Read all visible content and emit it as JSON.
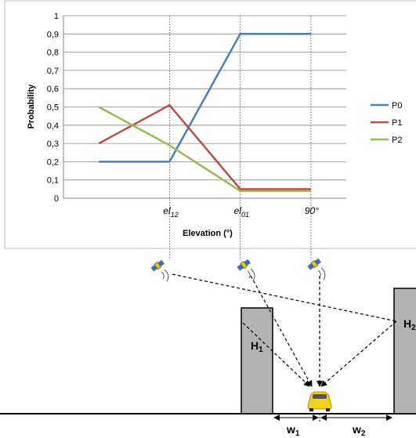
{
  "chart_data": {
    "type": "line",
    "categories": [
      "",
      "el12",
      "el01",
      "90°"
    ],
    "category_labels": [
      {
        "base": "",
        "sub": ""
      },
      {
        "base": "el",
        "sub": "12"
      },
      {
        "base": "el",
        "sub": "01"
      },
      {
        "base": "90°",
        "sub": ""
      }
    ],
    "series": [
      {
        "name": "P0",
        "color": "#4a7ebb",
        "values": [
          0.2,
          0.2,
          0.9,
          0.9
        ]
      },
      {
        "name": "P1",
        "color": "#be4b48",
        "values": [
          0.3,
          0.51,
          0.05,
          0.05
        ]
      },
      {
        "name": "P2",
        "color": "#98b954",
        "values": [
          0.5,
          0.29,
          0.04,
          0.04
        ]
      }
    ],
    "yticks": [
      "0",
      "0,1",
      "0,2",
      "0,3",
      "0,4",
      "0,5",
      "0,6",
      "0,7",
      "0,8",
      "0,9",
      "1"
    ],
    "ylim": [
      0,
      1
    ],
    "xlabel": "Elevation (°)",
    "ylabel": "Probability",
    "legend_position": "right",
    "grid": true
  },
  "diagram": {
    "building1_label": "H",
    "building1_sub": "1",
    "building2_label": "H",
    "building2_sub": "2",
    "width1_label": "w",
    "width1_sub": "1",
    "width2_label": "w",
    "width2_sub": "2",
    "icons": [
      "satellite-icon",
      "satellite-icon",
      "satellite-icon",
      "car-icon"
    ],
    "colors": {
      "building": "#b3b3b3",
      "car": "#f2d21b"
    }
  }
}
